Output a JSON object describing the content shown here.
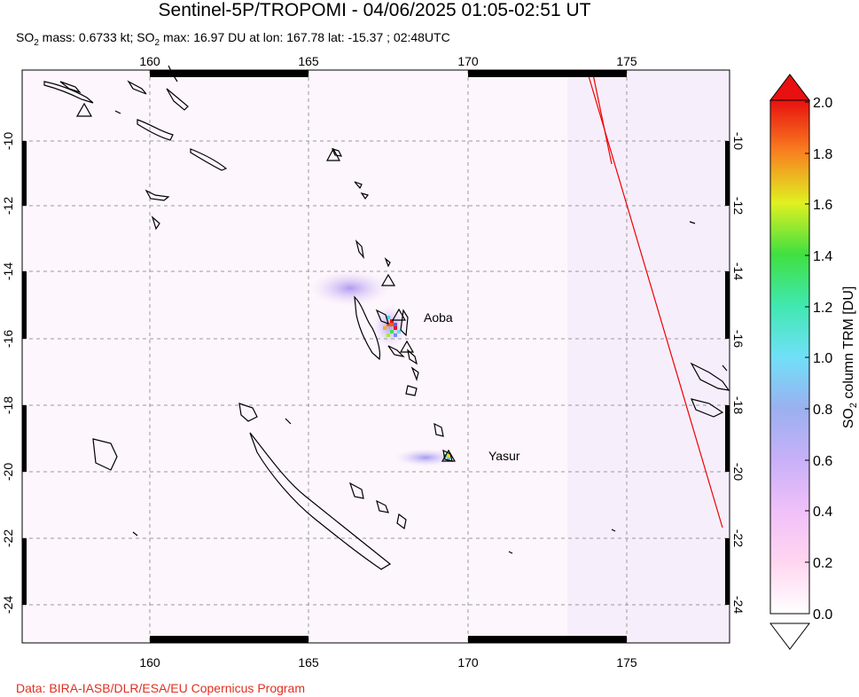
{
  "header": {
    "title": "Sentinel-5P/TROPOMI - 04/06/2025 01:05-02:51 UT",
    "stats_prefix": "SO",
    "stats_sub": "2",
    "stats_mid": " mass: 0.6733 kt; SO",
    "stats_sub2": "2",
    "stats_suffix": " max: 16.97 DU at lon: 167.78 lat: -15.37 ; 02:48UTC"
  },
  "map": {
    "lon_ticks": [
      "160",
      "165",
      "170",
      "175"
    ],
    "lat_ticks": [
      "-10",
      "-12",
      "-14",
      "-16",
      "-18",
      "-20",
      "-22",
      "-24"
    ],
    "volcano_labels": {
      "aoba": "Aoba",
      "yasur": "Yasur"
    }
  },
  "colorbar": {
    "tick_labels": [
      "2.0",
      "1.8",
      "1.6",
      "1.4",
      "1.2",
      "1.0",
      "0.8",
      "0.6",
      "0.4",
      "0.2",
      "0.0"
    ],
    "title_prefix": "SO",
    "title_sub": "2",
    "title_suffix": " column TRM [DU]",
    "colors": [
      "#ffffff",
      "#ffd6f0",
      "#e0b8f8",
      "#a8a8f0",
      "#88ccf8",
      "#40e8f0",
      "#40e080",
      "#b0e030",
      "#f0f020",
      "#f8a020",
      "#f03010",
      "#e01000"
    ]
  },
  "footer": {
    "credit": "Data: BIRA-IASB/DLR/ESA/EU Copernicus Program"
  }
}
